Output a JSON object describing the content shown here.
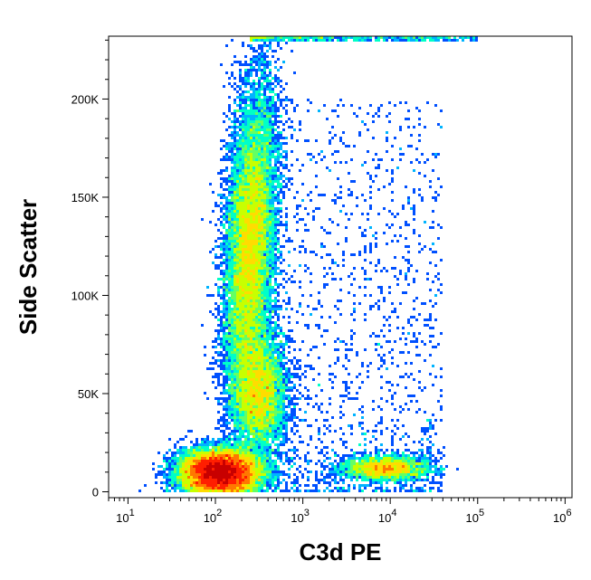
{
  "chart_data": {
    "type": "scatter",
    "subtype": "flow-cytometry-density-dot-plot",
    "title": "",
    "xlabel": "C3d PE",
    "ylabel": "Side Scatter",
    "x_scale": "log",
    "xlim": [
      6,
      1200000
    ],
    "ylim": [
      -3000,
      232000
    ],
    "x_ticks": [
      {
        "value": 10,
        "base": "10",
        "exp": "1"
      },
      {
        "value": 100,
        "base": "10",
        "exp": "2"
      },
      {
        "value": 1000,
        "base": "10",
        "exp": "3"
      },
      {
        "value": 10000,
        "base": "10",
        "exp": "4"
      },
      {
        "value": 100000,
        "base": "10",
        "exp": "5"
      },
      {
        "value": 1000000,
        "base": "10",
        "exp": "6"
      }
    ],
    "y_ticks": [
      {
        "value": 0,
        "label": "0"
      },
      {
        "value": 50000,
        "label": "50K"
      },
      {
        "value": 100000,
        "label": "100K"
      },
      {
        "value": 150000,
        "label": "150K"
      },
      {
        "value": 200000,
        "label": "200K"
      }
    ],
    "grid": false,
    "legend": "none",
    "colormap": [
      "#0000cc",
      "#0050ff",
      "#00b4ff",
      "#00ffc8",
      "#64ff64",
      "#c8ff00",
      "#ffdc00",
      "#ff7800",
      "#ff1e00",
      "#c80000"
    ],
    "populations": [
      {
        "log_x_center": 2.05,
        "y_center": 10000,
        "log_x_sd": 0.22,
        "y_sd": 5500,
        "weight": 0.34
      },
      {
        "log_x_center": 2.4,
        "y_center": 125000,
        "log_x_sd": 0.14,
        "y_sd": 40000,
        "weight": 0.3
      },
      {
        "log_x_center": 2.5,
        "y_center": 50000,
        "log_x_sd": 0.15,
        "y_sd": 15000,
        "weight": 0.12
      },
      {
        "log_x_center": 3.95,
        "y_center": 12000,
        "log_x_sd": 0.25,
        "y_sd": 3000,
        "weight": 0.06
      }
    ]
  }
}
